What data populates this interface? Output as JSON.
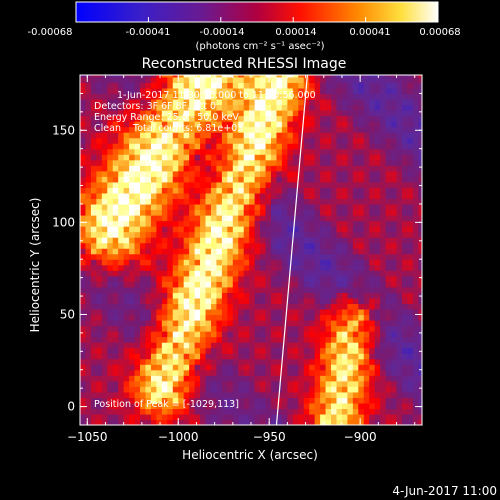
{
  "colorbar": {
    "ticks": [
      "-0.00068",
      "-0.00041",
      "-0.00014",
      "0.00014",
      "0.00041",
      "0.00068"
    ],
    "units": "(photons cm⁻² s⁻¹ asec⁻²)"
  },
  "chart_data": {
    "type": "heatmap",
    "title": "Reconstructed RHESSI Image",
    "annotations": {
      "time_range": "1-Jun-2017 11:30:56.000 to 11:40:56.000",
      "detectors": "Detectors: 3F 6F 8F, Att 0",
      "energy": "Energy Range: 25.0 - 50.0 keV",
      "clean": "Clean    Total counts: 6.81e+03",
      "peak": "Position of Peak = [-1029,113]"
    },
    "xlabel": "Heliocentric X (arcsec)",
    "ylabel": "Heliocentric Y (arcsec)",
    "xlim": [
      -1054,
      -866
    ],
    "ylim": [
      -10,
      180
    ],
    "xticks": [
      -1050,
      -1000,
      -950,
      -900
    ],
    "yticks": [
      0,
      50,
      100,
      150
    ],
    "xtick_labels": [
      "-1050",
      "-1000",
      "-950",
      "-900"
    ],
    "ytick_labels": [
      "0",
      "50",
      "100",
      "150"
    ],
    "peak": [
      -1029,
      113
    ],
    "colorscale": [
      "#0000ff",
      "#5a2aa0",
      "#7a1a70",
      "#ff0000",
      "#ff8000",
      "#ffff80",
      "#ffffff"
    ],
    "limb_line": [
      [
        -946,
        -10
      ],
      [
        -929,
        180
      ]
    ]
  },
  "footer": {
    "date": "4-Jun-2017 11:00"
  }
}
